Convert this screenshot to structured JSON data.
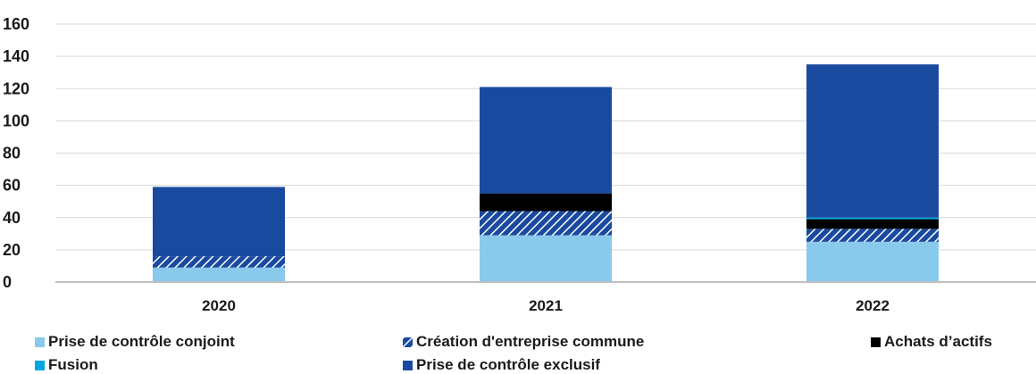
{
  "chart_data": {
    "type": "bar",
    "stacked": true,
    "categories": [
      "2020",
      "2021",
      "2022"
    ],
    "series": [
      {
        "name": "Prise de contrôle conjoint",
        "values": [
          9,
          29,
          25
        ],
        "color": "#88c9ec",
        "pattern": "solid"
      },
      {
        "name": "Création d'entreprise commune",
        "values": [
          7,
          15,
          8
        ],
        "color": "#1a4aa0",
        "pattern": "hatch"
      },
      {
        "name": "Achats d’actifs",
        "values": [
          0,
          11,
          6
        ],
        "color": "#000000",
        "pattern": "solid"
      },
      {
        "name": "Fusion",
        "values": [
          0,
          0,
          1
        ],
        "color": "#00a7e1",
        "pattern": "solid"
      },
      {
        "name": "Prise de contrôle exclusif",
        "values": [
          43,
          66,
          95
        ],
        "color": "#1a4aa0",
        "pattern": "solid"
      }
    ],
    "title": "",
    "xlabel": "",
    "ylabel": "",
    "ylim": [
      0,
      160
    ],
    "yticks": [
      "0",
      "20",
      "40",
      "60",
      "80",
      "100",
      "120",
      "140",
      "160"
    ],
    "grid": true,
    "legend_position": "bottom"
  }
}
